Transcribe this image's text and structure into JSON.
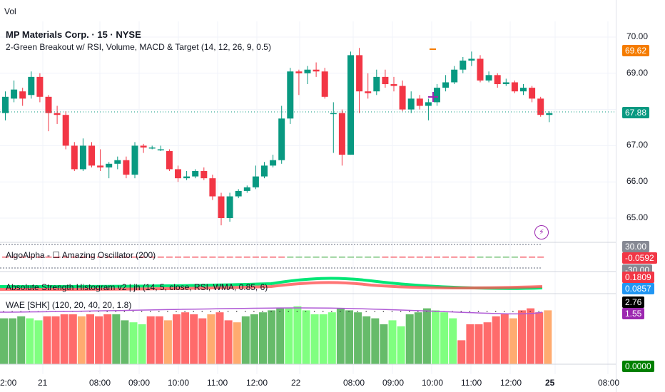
{
  "header": {
    "volume_label": "Vol",
    "symbol_title": "MP Materials Corp. · 15 · NYSE",
    "indicator_title": "2-Green Breakout w/ RSI, Volume, MACD & Target (14, 12, 26, 9, 0.5)"
  },
  "price_axis": {
    "ticks": [
      "70.00",
      "69.00",
      "67.00",
      "66.00",
      "65.00"
    ],
    "target_badge": "69.62",
    "last_price_badge": "67.88",
    "target_color": "#f57c00",
    "last_price_color": "#089981"
  },
  "panes": {
    "oscillator": {
      "label": "AlgoAlpha - ☐ Amazing Oscillator (200)",
      "upper_value": "30.00",
      "current_value": "-0.0592",
      "lower_value": "-30.00"
    },
    "strength": {
      "label": "Absolute Strength Histogram v2 | jh (14, 5, close, RSI, WMA, 0.85, 6)",
      "value_1": "0.1809",
      "value_2": "0.0857"
    },
    "wae": {
      "label": "WAE [SHK] (120, 20, 40, 20, 1.8)",
      "value_1": "2.76",
      "value_2": "1.55",
      "value_3": "0.0000"
    }
  },
  "time_axis": {
    "labels": [
      "2:00",
      "21",
      "08:00",
      "09:00",
      "10:00",
      "11:00",
      "12:00",
      "22",
      "08:00",
      "09:00",
      "10:00",
      "11:00",
      "12:00",
      "25",
      "08:00"
    ]
  },
  "candles": [
    {
      "o": 67.9,
      "c": 68.35,
      "h": 68.5,
      "l": 67.7
    },
    {
      "o": 68.3,
      "c": 68.55,
      "h": 68.8,
      "l": 68.2
    },
    {
      "o": 68.5,
      "c": 68.3,
      "h": 68.6,
      "l": 68.1
    },
    {
      "o": 68.4,
      "c": 68.9,
      "h": 69.05,
      "l": 68.3
    },
    {
      "o": 68.9,
      "c": 68.35,
      "h": 69.0,
      "l": 68.2
    },
    {
      "o": 68.35,
      "c": 67.9,
      "h": 68.4,
      "l": 67.4
    },
    {
      "o": 67.9,
      "c": 67.85,
      "h": 68.1,
      "l": 67.6
    },
    {
      "o": 67.85,
      "c": 67.0,
      "h": 67.95,
      "l": 66.9
    },
    {
      "o": 67.0,
      "c": 66.35,
      "h": 67.1,
      "l": 66.3
    },
    {
      "o": 66.35,
      "c": 67.0,
      "h": 67.2,
      "l": 66.3
    },
    {
      "o": 67.0,
      "c": 66.45,
      "h": 67.1,
      "l": 66.4
    },
    {
      "o": 66.45,
      "c": 66.4,
      "h": 66.9,
      "l": 66.3
    },
    {
      "o": 66.4,
      "c": 66.5,
      "h": 66.55,
      "l": 66.1
    },
    {
      "o": 66.5,
      "c": 66.6,
      "h": 66.7,
      "l": 66.35
    },
    {
      "o": 66.6,
      "c": 66.2,
      "h": 66.7,
      "l": 66.1
    },
    {
      "o": 66.2,
      "c": 67.0,
      "h": 67.1,
      "l": 66.1
    },
    {
      "o": 67.0,
      "c": 66.95,
      "h": 67.05,
      "l": 66.8
    },
    {
      "o": 66.95,
      "c": 66.95,
      "h": 67.0,
      "l": 66.9
    },
    {
      "o": 66.9,
      "c": 66.9,
      "h": 67.0,
      "l": 66.85
    },
    {
      "o": 66.85,
      "c": 66.35,
      "h": 66.9,
      "l": 66.3
    },
    {
      "o": 66.35,
      "c": 66.1,
      "h": 66.45,
      "l": 66.0
    },
    {
      "o": 66.1,
      "c": 66.15,
      "h": 66.3,
      "l": 66.05
    },
    {
      "o": 66.15,
      "c": 66.3,
      "h": 66.35,
      "l": 66.1
    },
    {
      "o": 66.3,
      "c": 66.1,
      "h": 66.4,
      "l": 66.05
    },
    {
      "o": 66.1,
      "c": 65.6,
      "h": 66.2,
      "l": 65.5
    },
    {
      "o": 65.6,
      "c": 65.0,
      "h": 65.7,
      "l": 64.8
    },
    {
      "o": 65.0,
      "c": 65.6,
      "h": 65.7,
      "l": 64.9
    },
    {
      "o": 65.6,
      "c": 65.75,
      "h": 65.8,
      "l": 65.55
    },
    {
      "o": 65.75,
      "c": 65.85,
      "h": 65.9,
      "l": 65.7
    },
    {
      "o": 65.85,
      "c": 66.15,
      "h": 66.45,
      "l": 65.8
    },
    {
      "o": 66.15,
      "c": 66.45,
      "h": 66.55,
      "l": 66.1
    },
    {
      "o": 66.45,
      "c": 66.6,
      "h": 66.75,
      "l": 66.4
    },
    {
      "o": 66.6,
      "c": 67.75,
      "h": 68.1,
      "l": 66.5
    },
    {
      "o": 67.75,
      "c": 69.05,
      "h": 69.15,
      "l": 67.6
    },
    {
      "o": 69.05,
      "c": 69.0,
      "h": 69.1,
      "l": 68.4
    },
    {
      "o": 69.0,
      "c": 69.1,
      "h": 69.2,
      "l": 68.7
    },
    {
      "o": 69.1,
      "c": 69.05,
      "h": 69.3,
      "l": 68.9
    },
    {
      "o": 69.05,
      "c": 68.35,
      "h": 69.15,
      "l": 68.3
    },
    {
      "o": 67.9,
      "c": 67.9,
      "h": 68.2,
      "l": 66.8
    },
    {
      "o": 67.9,
      "c": 66.75,
      "h": 68.0,
      "l": 66.45
    },
    {
      "o": 66.75,
      "c": 69.5,
      "h": 69.6,
      "l": 66.75
    },
    {
      "o": 69.5,
      "c": 68.5,
      "h": 69.7,
      "l": 67.9
    },
    {
      "o": 68.5,
      "c": 68.45,
      "h": 69.0,
      "l": 68.3
    },
    {
      "o": 68.5,
      "c": 68.9,
      "h": 69.1,
      "l": 68.4
    },
    {
      "o": 68.9,
      "c": 68.7,
      "h": 69.1,
      "l": 68.6
    },
    {
      "o": 68.7,
      "c": 68.65,
      "h": 68.9,
      "l": 68.5
    },
    {
      "o": 68.65,
      "c": 68.0,
      "h": 68.8,
      "l": 67.95
    },
    {
      "o": 68.0,
      "c": 68.3,
      "h": 68.5,
      "l": 67.9
    },
    {
      "o": 68.3,
      "c": 68.1,
      "h": 68.4,
      "l": 68.0
    },
    {
      "o": 68.1,
      "c": 68.2,
      "h": 68.3,
      "l": 67.7
    },
    {
      "o": 68.2,
      "c": 68.6,
      "h": 68.7,
      "l": 68.1
    },
    {
      "o": 68.6,
      "c": 68.75,
      "h": 68.95,
      "l": 68.5
    },
    {
      "o": 68.75,
      "c": 69.1,
      "h": 69.2,
      "l": 68.7
    },
    {
      "o": 69.1,
      "c": 69.35,
      "h": 69.45,
      "l": 69.0
    },
    {
      "o": 69.35,
      "c": 69.4,
      "h": 69.6,
      "l": 69.2
    },
    {
      "o": 69.4,
      "c": 68.8,
      "h": 69.5,
      "l": 68.75
    },
    {
      "o": 68.8,
      "c": 68.95,
      "h": 69.05,
      "l": 68.75
    },
    {
      "o": 68.95,
      "c": 68.7,
      "h": 69.0,
      "l": 68.6
    },
    {
      "o": 68.7,
      "c": 68.75,
      "h": 68.85,
      "l": 68.65
    },
    {
      "o": 68.75,
      "c": 68.5,
      "h": 68.8,
      "l": 68.45
    },
    {
      "o": 68.5,
      "c": 68.6,
      "h": 68.7,
      "l": 68.4
    },
    {
      "o": 68.6,
      "c": 68.3,
      "h": 68.65,
      "l": 68.2
    },
    {
      "o": 68.3,
      "c": 67.85,
      "h": 68.35,
      "l": 67.8
    },
    {
      "o": 67.85,
      "c": 67.9,
      "h": 67.95,
      "l": 67.65
    }
  ],
  "wae_bars": [
    {
      "v": 2.3,
      "c": "#66bb6a"
    },
    {
      "v": 2.3,
      "c": "#66bb6a"
    },
    {
      "v": 2.4,
      "c": "#66bb6a"
    },
    {
      "v": 2.3,
      "c": "#80ff80"
    },
    {
      "v": 2.2,
      "c": "#80ff80"
    },
    {
      "v": 2.4,
      "c": "#ff6b6b"
    },
    {
      "v": 2.4,
      "c": "#ff6b6b"
    },
    {
      "v": 2.5,
      "c": "#ff6b6b"
    },
    {
      "v": 2.5,
      "c": "#ff6b6b"
    },
    {
      "v": 2.4,
      "c": "#ffab70"
    },
    {
      "v": 2.5,
      "c": "#ff6b6b"
    },
    {
      "v": 2.4,
      "c": "#ff6b6b"
    },
    {
      "v": 2.5,
      "c": "#ff6b6b"
    },
    {
      "v": 2.5,
      "c": "#66bb6a"
    },
    {
      "v": 2.2,
      "c": "#66bb6a"
    },
    {
      "v": 2.1,
      "c": "#80ff80"
    },
    {
      "v": 2.0,
      "c": "#80ff80"
    },
    {
      "v": 2.4,
      "c": "#ff6b6b"
    },
    {
      "v": 2.4,
      "c": "#ff6b6b"
    },
    {
      "v": 2.2,
      "c": "#ffab70"
    },
    {
      "v": 2.5,
      "c": "#ff6b6b"
    },
    {
      "v": 2.6,
      "c": "#ff6b6b"
    },
    {
      "v": 2.5,
      "c": "#ff6b6b"
    },
    {
      "v": 2.3,
      "c": "#ff6b6b"
    },
    {
      "v": 2.5,
      "c": "#ffab70"
    },
    {
      "v": 2.6,
      "c": "#ff6b6b"
    },
    {
      "v": 2.2,
      "c": "#ff6b6b"
    },
    {
      "v": 2.1,
      "c": "#ffab70"
    },
    {
      "v": 2.4,
      "c": "#66bb6a"
    },
    {
      "v": 2.5,
      "c": "#66bb6a"
    },
    {
      "v": 2.6,
      "c": "#66bb6a"
    },
    {
      "v": 2.7,
      "c": "#66bb6a"
    },
    {
      "v": 2.8,
      "c": "#66bb6a"
    },
    {
      "v": 2.8,
      "c": "#80ff80"
    },
    {
      "v": 2.9,
      "c": "#80ff80"
    },
    {
      "v": 2.7,
      "c": "#80ff80"
    },
    {
      "v": 2.5,
      "c": "#80ff80"
    },
    {
      "v": 2.5,
      "c": "#80ff80"
    },
    {
      "v": 2.6,
      "c": "#80ff80"
    },
    {
      "v": 2.8,
      "c": "#66bb6a"
    },
    {
      "v": 2.7,
      "c": "#66bb6a"
    },
    {
      "v": 2.6,
      "c": "#66bb6a"
    },
    {
      "v": 2.4,
      "c": "#66bb6a"
    },
    {
      "v": 2.3,
      "c": "#66bb6a"
    },
    {
      "v": 2.0,
      "c": "#66bb6a"
    },
    {
      "v": 2.2,
      "c": "#80ff80"
    },
    {
      "v": 1.9,
      "c": "#80ff80"
    },
    {
      "v": 2.5,
      "c": "#66bb6a"
    },
    {
      "v": 2.6,
      "c": "#66bb6a"
    },
    {
      "v": 2.8,
      "c": "#66bb6a"
    },
    {
      "v": 2.7,
      "c": "#80ff80"
    },
    {
      "v": 2.6,
      "c": "#80ff80"
    },
    {
      "v": 2.3,
      "c": "#80ff80"
    },
    {
      "v": 1.2,
      "c": "#ff6b6b"
    },
    {
      "v": 2.0,
      "c": "#ff6b6b"
    },
    {
      "v": 2.0,
      "c": "#ff6b6b"
    },
    {
      "v": 2.1,
      "c": "#ff6b6b"
    },
    {
      "v": 2.4,
      "c": "#ff6b6b"
    },
    {
      "v": 2.5,
      "c": "#ff6b6b"
    },
    {
      "v": 2.3,
      "c": "#ffab70"
    },
    {
      "v": 2.7,
      "c": "#ff6b6b"
    },
    {
      "v": 2.8,
      "c": "#ff6b6b"
    },
    {
      "v": 2.6,
      "c": "#ff6b6b"
    },
    {
      "v": 2.7,
      "c": "#ffab70"
    }
  ],
  "colors": {
    "up": "#089981",
    "down": "#f23645",
    "grid": "#f0f3fa"
  }
}
